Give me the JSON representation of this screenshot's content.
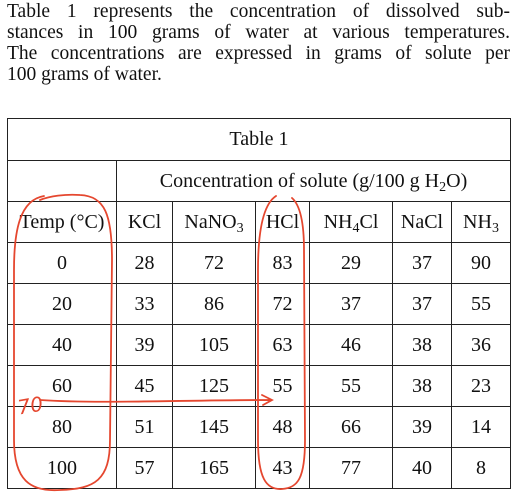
{
  "paragraph": [
    "Table 1 represents the concentration of dissolved sub-",
    "stances in 100 grams of water at various temperatures.",
    "The concentrations are expressed in grams of solute per",
    "100 grams of water."
  ],
  "table": {
    "title": "Table 1",
    "subheader": [
      "Concentration of solute (g/100 g H",
      "2",
      "O)"
    ],
    "columns": [
      [
        "Temp (°C)"
      ],
      [
        "KCl"
      ],
      [
        "NaNO",
        "3"
      ],
      [
        "HCl"
      ],
      [
        "NH",
        "4",
        "Cl"
      ],
      [
        "NaCl"
      ],
      [
        "NH",
        "3"
      ]
    ],
    "rows": [
      [
        0,
        28,
        72,
        83,
        29,
        37,
        90
      ],
      [
        20,
        33,
        86,
        72,
        37,
        37,
        55
      ],
      [
        40,
        39,
        105,
        63,
        46,
        38,
        36
      ],
      [
        60,
        45,
        125,
        55,
        55,
        38,
        23
      ],
      [
        80,
        51,
        145,
        48,
        66,
        39,
        14
      ],
      [
        100,
        57,
        165,
        43,
        77,
        40,
        8
      ]
    ]
  },
  "annotations": [
    "70"
  ]
}
